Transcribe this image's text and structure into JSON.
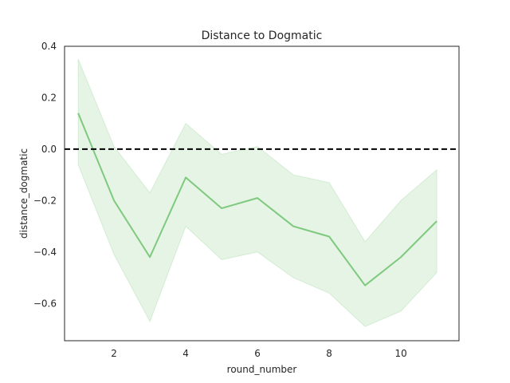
{
  "chart_data": {
    "type": "line",
    "title": "Distance to Dogmatic",
    "xlabel": "round_number",
    "ylabel": "distance_dogmatic",
    "xlim": [
      0.62,
      11.62
    ],
    "ylim": [
      -0.745,
      0.4
    ],
    "xticks": [
      2,
      4,
      6,
      8,
      10
    ],
    "yticks": [
      -0.6,
      -0.4,
      -0.2,
      0.0,
      0.2,
      0.4
    ],
    "ytick_labels": [
      "−0.6",
      "−0.4",
      "−0.2",
      "0.0",
      "0.2",
      "0.4"
    ],
    "grid": false,
    "series": [
      {
        "x": [
          1,
          2,
          3,
          4,
          5,
          6,
          7,
          8,
          9,
          10,
          11
        ],
        "y": [
          0.14,
          -0.2,
          -0.42,
          -0.11,
          -0.23,
          -0.19,
          -0.3,
          -0.34,
          -0.53,
          -0.42,
          -0.28
        ],
        "ci_lower": [
          -0.06,
          -0.41,
          -0.67,
          -0.3,
          -0.43,
          -0.4,
          -0.5,
          -0.56,
          -0.69,
          -0.63,
          -0.48
        ],
        "ci_upper": [
          0.35,
          0.01,
          -0.17,
          0.1,
          -0.02,
          0.01,
          -0.1,
          -0.13,
          -0.36,
          -0.2,
          -0.08
        ],
        "color": "#7fc97f",
        "band_color": "#7fc97f"
      }
    ],
    "reference_line": {
      "y": 0.0,
      "style": "dashed",
      "color": "#000000"
    }
  }
}
